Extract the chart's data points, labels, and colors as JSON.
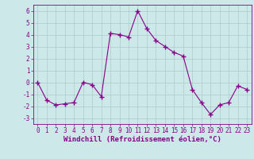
{
  "hours": [
    0,
    1,
    2,
    3,
    4,
    5,
    6,
    7,
    8,
    9,
    10,
    11,
    12,
    13,
    14,
    15,
    16,
    17,
    18,
    19,
    20,
    21,
    22,
    23
  ],
  "values": [
    0.0,
    -1.5,
    -1.9,
    -1.8,
    -1.7,
    0.0,
    -0.2,
    -1.2,
    4.1,
    4.0,
    3.8,
    6.0,
    4.5,
    3.5,
    3.0,
    2.5,
    2.2,
    -0.6,
    -1.7,
    -2.7,
    -1.9,
    -1.7,
    -0.3,
    -0.6
  ],
  "line_color": "#880088",
  "marker": "+",
  "marker_size": 4,
  "marker_lw": 1.0,
  "bg_color": "#cce8e8",
  "grid_color": "#aacccc",
  "xlabel": "Windchill (Refroidissement éolien,°C)",
  "ylim": [
    -3.5,
    6.5
  ],
  "xlim": [
    -0.5,
    23.5
  ],
  "yticks": [
    -3,
    -2,
    -1,
    0,
    1,
    2,
    3,
    4,
    5,
    6
  ],
  "xticks": [
    0,
    1,
    2,
    3,
    4,
    5,
    6,
    7,
    8,
    9,
    10,
    11,
    12,
    13,
    14,
    15,
    16,
    17,
    18,
    19,
    20,
    21,
    22,
    23
  ],
  "tick_color": "#880088",
  "tick_fontsize": 5.5,
  "xlabel_fontsize": 6.5,
  "xlabel_color": "#880088",
  "axis_color": "#880088",
  "line_width": 0.8
}
